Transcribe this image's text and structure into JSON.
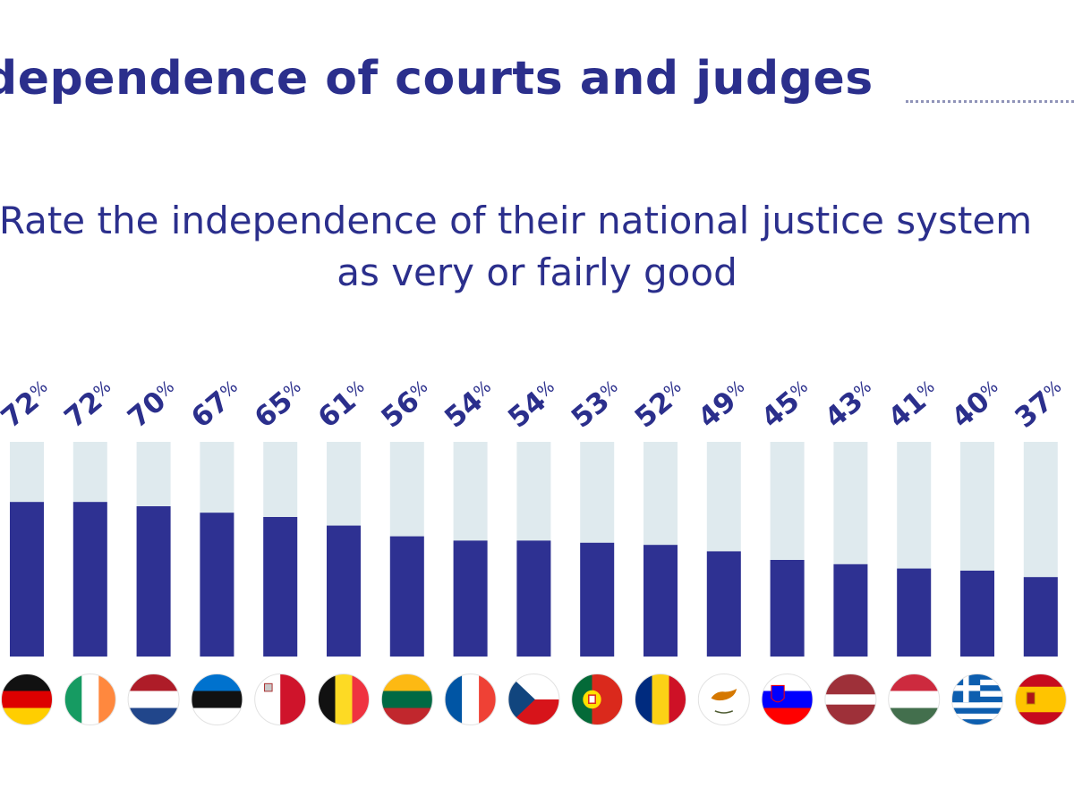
{
  "header": {
    "title": "dependence of courts and judges",
    "subtitle_line1": "Rate the independence of their national justice system",
    "subtitle_line2": "as very or fairly good"
  },
  "colors": {
    "bar": "#2e3192",
    "track": "#dfeaee",
    "label": "#2b2f8c"
  },
  "chart_data": {
    "type": "bar",
    "categories": [
      "Germany",
      "Ireland",
      "Netherlands",
      "Estonia",
      "Malta",
      "Belgium",
      "Lithuania",
      "France",
      "Czechia",
      "Portugal",
      "Romania",
      "Cyprus",
      "Slovenia",
      "Latvia",
      "Hungary",
      "Greece",
      "Spain"
    ],
    "values": [
      72,
      72,
      70,
      67,
      65,
      61,
      56,
      54,
      54,
      53,
      52,
      49,
      45,
      43,
      41,
      40,
      37
    ],
    "value_suffix": "%",
    "ylim": [
      0,
      100
    ],
    "flag_icons": [
      "germany-flag-icon",
      "ireland-flag-icon",
      "netherlands-flag-icon",
      "estonia-flag-icon",
      "malta-flag-icon",
      "belgium-flag-icon",
      "lithuania-flag-icon",
      "france-flag-icon",
      "czechia-flag-icon",
      "portugal-flag-icon",
      "romania-flag-icon",
      "cyprus-flag-icon",
      "slovenia-flag-icon",
      "latvia-flag-icon",
      "hungary-flag-icon",
      "greece-flag-icon",
      "spain-flag-icon"
    ]
  }
}
